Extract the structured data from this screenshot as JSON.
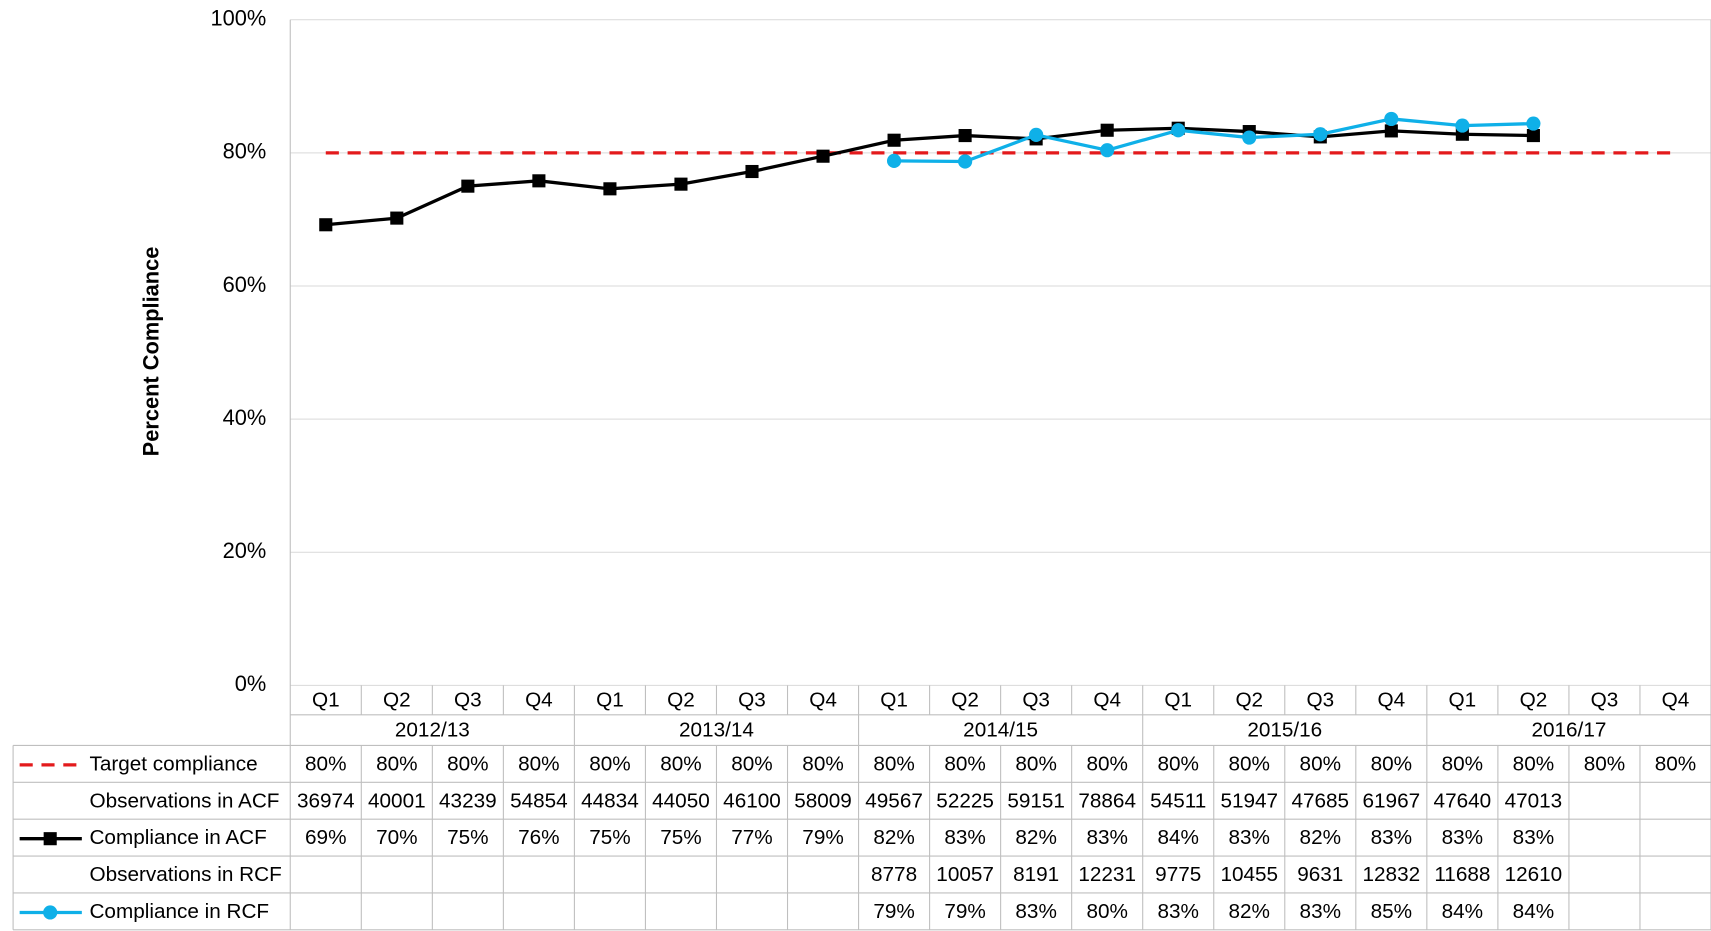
{
  "chart_data": {
    "type": "line",
    "y_label": "Percent Compliance",
    "categories": [
      "Q1",
      "Q2",
      "Q3",
      "Q4",
      "Q1",
      "Q2",
      "Q3",
      "Q4",
      "Q1",
      "Q2",
      "Q3",
      "Q4",
      "Q1",
      "Q2",
      "Q3",
      "Q4",
      "Q1",
      "Q2",
      "Q3",
      "Q4"
    ],
    "groups": [
      "2012/13",
      "2013/14",
      "2014/15",
      "2015/16",
      "2016/17"
    ],
    "ylim": [
      0,
      100
    ],
    "yticks": [
      {
        "value": 0,
        "label": "0%"
      },
      {
        "value": 20,
        "label": "20%"
      },
      {
        "value": 40,
        "label": "40%"
      },
      {
        "value": 60,
        "label": "60%"
      },
      {
        "value": 80,
        "label": "80%"
      },
      {
        "value": 100,
        "label": "100%"
      }
    ],
    "grid": true,
    "series": [
      {
        "name": "Target compliance",
        "color": "#e31a1c",
        "dash": true,
        "values": [
          80,
          80,
          80,
          80,
          80,
          80,
          80,
          80,
          80,
          80,
          80,
          80,
          80,
          80,
          80,
          80,
          80,
          80,
          80,
          80
        ],
        "value_labels": [
          "80%",
          "80%",
          "80%",
          "80%",
          "80%",
          "80%",
          "80%",
          "80%",
          "80%",
          "80%",
          "80%",
          "80%",
          "80%",
          "80%",
          "80%",
          "80%",
          "80%",
          "80%",
          "80%",
          "80%"
        ]
      },
      {
        "name": "Observations in ACF",
        "values": [
          36974,
          40001,
          43239,
          54854,
          44834,
          44050,
          46100,
          58009,
          49567,
          52225,
          59151,
          78864,
          54511,
          51947,
          47685,
          61967,
          47640,
          47013,
          null,
          null
        ]
      },
      {
        "name": "Compliance in ACF",
        "color": "#000000",
        "marker": "square",
        "values": [
          69.2,
          70.2,
          75,
          75.8,
          74.6,
          75.3,
          77.2,
          79.5,
          81.9,
          82.6,
          82.1,
          83.4,
          83.7,
          83.2,
          82.4,
          83.3,
          82.8,
          82.6,
          null,
          null
        ],
        "value_labels": [
          "69%",
          "70%",
          "75%",
          "76%",
          "75%",
          "75%",
          "77%",
          "79%",
          "82%",
          "83%",
          "82%",
          "83%",
          "84%",
          "83%",
          "82%",
          "83%",
          "83%",
          "83%",
          null,
          null
        ]
      },
      {
        "name": "Observations in RCF",
        "values": [
          null,
          null,
          null,
          null,
          null,
          null,
          null,
          null,
          8778,
          10057,
          8191,
          12231,
          9775,
          10455,
          9631,
          12832,
          11688,
          12610,
          null,
          null
        ]
      },
      {
        "name": "Compliance in RCF",
        "color": "#0fb0e8",
        "marker": "circle",
        "values": [
          null,
          null,
          null,
          null,
          null,
          null,
          null,
          null,
          78.8,
          78.7,
          82.7,
          80.4,
          83.4,
          82.3,
          82.8,
          85.1,
          84.1,
          84.4,
          null,
          null
        ],
        "value_labels": [
          null,
          null,
          null,
          null,
          null,
          null,
          null,
          null,
          "79%",
          "79%",
          "83%",
          "80%",
          "83%",
          "82%",
          "83%",
          "85%",
          "84%",
          "84%",
          null,
          null
        ]
      }
    ]
  }
}
